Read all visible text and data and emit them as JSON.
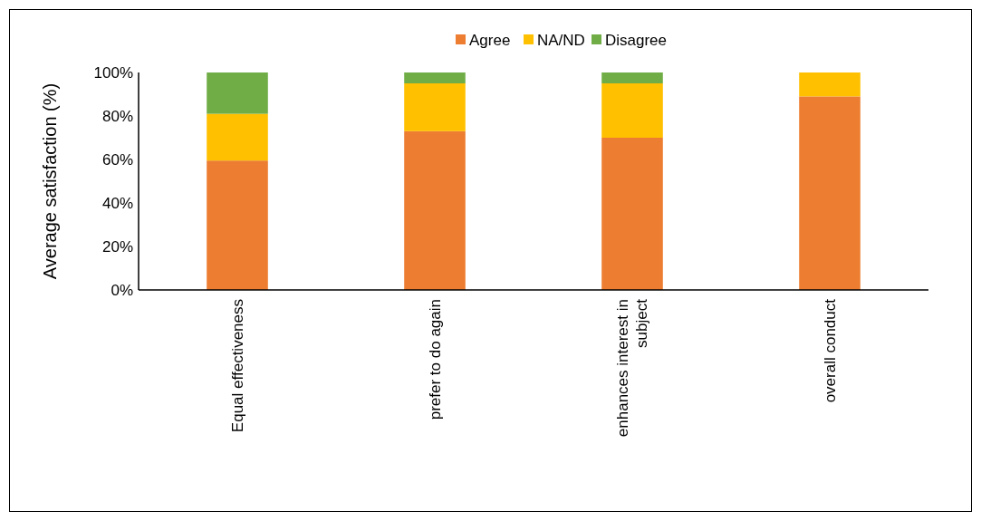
{
  "chart_data": {
    "type": "bar",
    "stacked": true,
    "ylabel": "Average satisfaction (%)",
    "categories": [
      "Equal effectiveness",
      "prefer to do again",
      "enhances interest in subject",
      "overall conduct"
    ],
    "series": [
      {
        "name": "Agree",
        "color": "#ed7d31",
        "values": [
          59.5,
          73,
          70,
          89
        ]
      },
      {
        "name": "NA/ND",
        "color": "#ffc000",
        "values": [
          21.5,
          22,
          25,
          11
        ]
      },
      {
        "name": "Disagree",
        "color": "#70ad47",
        "values": [
          19,
          5,
          5,
          0
        ]
      }
    ],
    "ylim": [
      0,
      100
    ],
    "yticks": [
      {
        "value": 0,
        "label": "0%"
      },
      {
        "value": 20,
        "label": "20%"
      },
      {
        "value": 40,
        "label": "40%"
      },
      {
        "value": 60,
        "label": "60%"
      },
      {
        "value": 80,
        "label": "80%"
      },
      {
        "value": 100,
        "label": "100%"
      }
    ],
    "grid": false,
    "legend": "top"
  }
}
